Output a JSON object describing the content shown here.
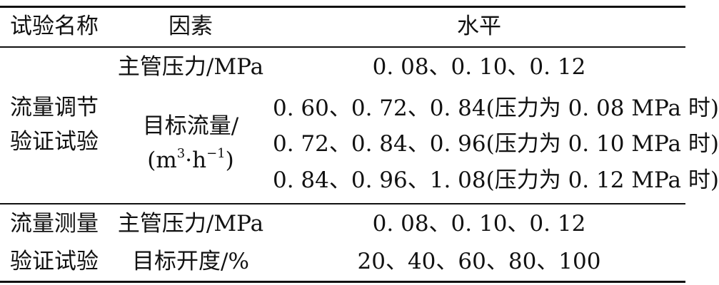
{
  "table": {
    "headers": [
      "试验名称",
      "因素",
      "水平"
    ],
    "groups": [
      {
        "name_lines": [
          "流量调节",
          "验证试验"
        ],
        "factors": [
          {
            "label": "主管压力/MPa",
            "levels": [
              "0. 08、0. 10、0. 12"
            ]
          },
          {
            "label": "目标流量/",
            "unit": {
              "open": "(m",
              "exp1": "3",
              "mid": "·h",
              "exp2": "−1",
              "close": ")"
            },
            "levels": [
              "0. 60、0. 72、0. 84(压力为 0. 08 MPa 时)",
              "0. 72、0. 84、0. 96(压力为 0. 10 MPa 时)",
              "0. 84、0. 96、1. 08(压力为 0. 12 MPa 时)"
            ]
          }
        ]
      },
      {
        "name_lines": [
          "流量测量",
          "验证试验"
        ],
        "factors": [
          {
            "label": "主管压力/MPa",
            "levels": [
              "0. 08、0. 10、0. 12"
            ]
          },
          {
            "label": "目标开度/%",
            "levels": [
              "20、40、60、80、100"
            ]
          }
        ]
      }
    ]
  }
}
